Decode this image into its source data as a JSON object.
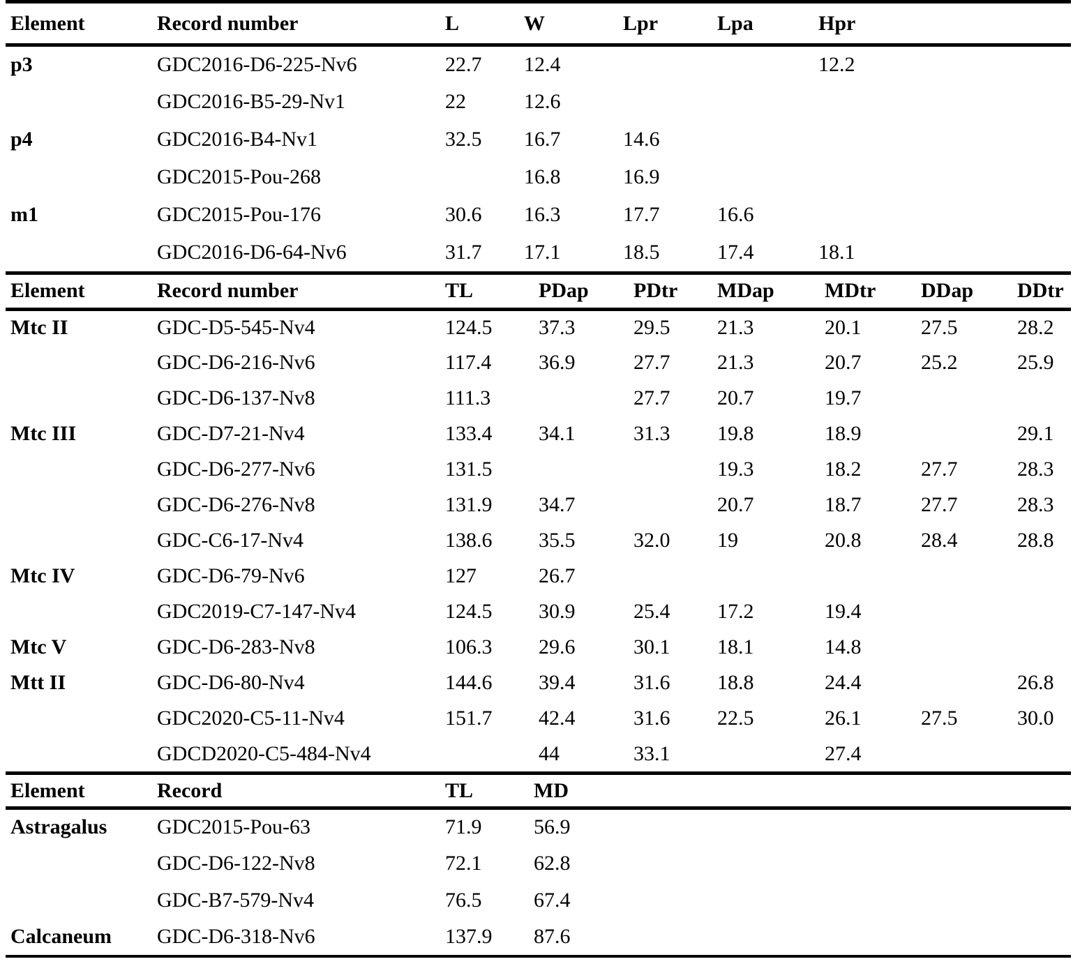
{
  "table": {
    "sections": [
      {
        "columns": [
          "Element",
          "Record number",
          "L",
          "W",
          "Lpr",
          "Lpa",
          "Hpr"
        ],
        "rows": [
          {
            "element": "p3",
            "record": "GDC2016-D6-225-Nv6",
            "values": [
              "22.7",
              "12.4",
              "",
              "",
              "12.2"
            ]
          },
          {
            "element": "",
            "record": "GDC2016-B5-29-Nv1",
            "values": [
              "22",
              "12.6",
              "",
              "",
              ""
            ]
          },
          {
            "element": "p4",
            "record": "GDC2016-B4-Nv1",
            "values": [
              "32.5",
              "16.7",
              "14.6",
              "",
              ""
            ]
          },
          {
            "element": "",
            "record": "GDC2015-Pou-268",
            "values": [
              "",
              "16.8",
              "16.9",
              "",
              ""
            ]
          },
          {
            "element": "m1",
            "record": "GDC2015-Pou-176",
            "values": [
              "30.6",
              "16.3",
              "17.7",
              "16.6",
              ""
            ]
          },
          {
            "element": "",
            "record": "GDC2016-D6-64-Nv6",
            "values": [
              "31.7",
              "17.1",
              "18.5",
              "17.4",
              "18.1"
            ]
          }
        ]
      },
      {
        "columns": [
          "Element",
          "Record number",
          "TL",
          "PDap",
          "PDtr",
          "MDap",
          "MDtr",
          "DDap",
          "DDtr"
        ],
        "rows": [
          {
            "element": "Mtc II",
            "record": "GDC-D5-545-Nv4",
            "values": [
              "124.5",
              "37.3",
              "29.5",
              "21.3",
              "20.1",
              "27.5",
              "28.2"
            ]
          },
          {
            "element": "",
            "record": "GDC-D6-216-Nv6",
            "values": [
              "117.4",
              "36.9",
              "27.7",
              "21.3",
              "20.7",
              "25.2",
              "25.9"
            ]
          },
          {
            "element": "",
            "record": "GDC-D6-137-Nv8",
            "values": [
              "111.3",
              "",
              "27.7",
              "20.7",
              "19.7",
              "",
              ""
            ]
          },
          {
            "element": "Mtc III",
            "record": "GDC-D7-21-Nv4",
            "values": [
              "133.4",
              "34.1",
              "31.3",
              "19.8",
              "18.9",
              "",
              "29.1"
            ]
          },
          {
            "element": "",
            "record": "GDC-D6-277-Nv6",
            "values": [
              "131.5",
              "",
              "",
              "19.3",
              "18.2",
              "27.7",
              "28.3"
            ]
          },
          {
            "element": "",
            "record": "GDC-D6-276-Nv8",
            "values": [
              "131.9",
              "34.7",
              "",
              "20.7",
              "18.7",
              "27.7",
              "28.3"
            ]
          },
          {
            "element": "",
            "record": "GDC-C6-17-Nv4",
            "values": [
              "138.6",
              "35.5",
              "32.0",
              "19",
              "20.8",
              "28.4",
              "28.8"
            ]
          },
          {
            "element": "Mtc IV",
            "record": "GDC-D6-79-Nv6",
            "values": [
              "127",
              "26.7",
              "",
              "",
              "",
              "",
              ""
            ]
          },
          {
            "element": "",
            "record": "GDC2019-C7-147-Nv4",
            "values": [
              "124.5",
              "30.9",
              "25.4",
              "17.2",
              "19.4",
              "",
              ""
            ]
          },
          {
            "element": "Mtc V",
            "record": "GDC-D6-283-Nv8",
            "values": [
              "106.3",
              "29.6",
              "30.1",
              "18.1",
              "14.8",
              "",
              ""
            ]
          },
          {
            "element": "Mtt II",
            "record": "GDC-D6-80-Nv4",
            "values": [
              "144.6",
              "39.4",
              "31.6",
              "18.8",
              "24.4",
              "",
              "26.8"
            ]
          },
          {
            "element": "",
            "record": "GDC2020-C5-11-Nv4",
            "values": [
              "151.7",
              "42.4",
              "31.6",
              "22.5",
              "26.1",
              "27.5",
              "30.0"
            ]
          },
          {
            "element": "",
            "record": "GDCD2020-C5-484-Nv4",
            "values": [
              "",
              "44",
              "33.1",
              "",
              "27.4",
              "",
              ""
            ]
          }
        ]
      },
      {
        "columns": [
          "Element",
          "Record",
          "TL",
          "MD"
        ],
        "rows": [
          {
            "element": "Astragalus",
            "record": "GDC2015-Pou-63",
            "values": [
              "71.9",
              "56.9"
            ]
          },
          {
            "element": "",
            "record": "GDC-D6-122-Nv8",
            "values": [
              "72.1",
              "62.8"
            ]
          },
          {
            "element": "",
            "record": "GDC-B7-579-Nv4",
            "values": [
              "76.5",
              "67.4"
            ]
          },
          {
            "element": "Calcaneum",
            "record": "GDC-D6-318-Nv6",
            "values": [
              "137.9",
              "87.6"
            ]
          }
        ]
      }
    ],
    "colors": {
      "text": "#000000",
      "background": "#ffffff",
      "rule": "#000000"
    }
  }
}
